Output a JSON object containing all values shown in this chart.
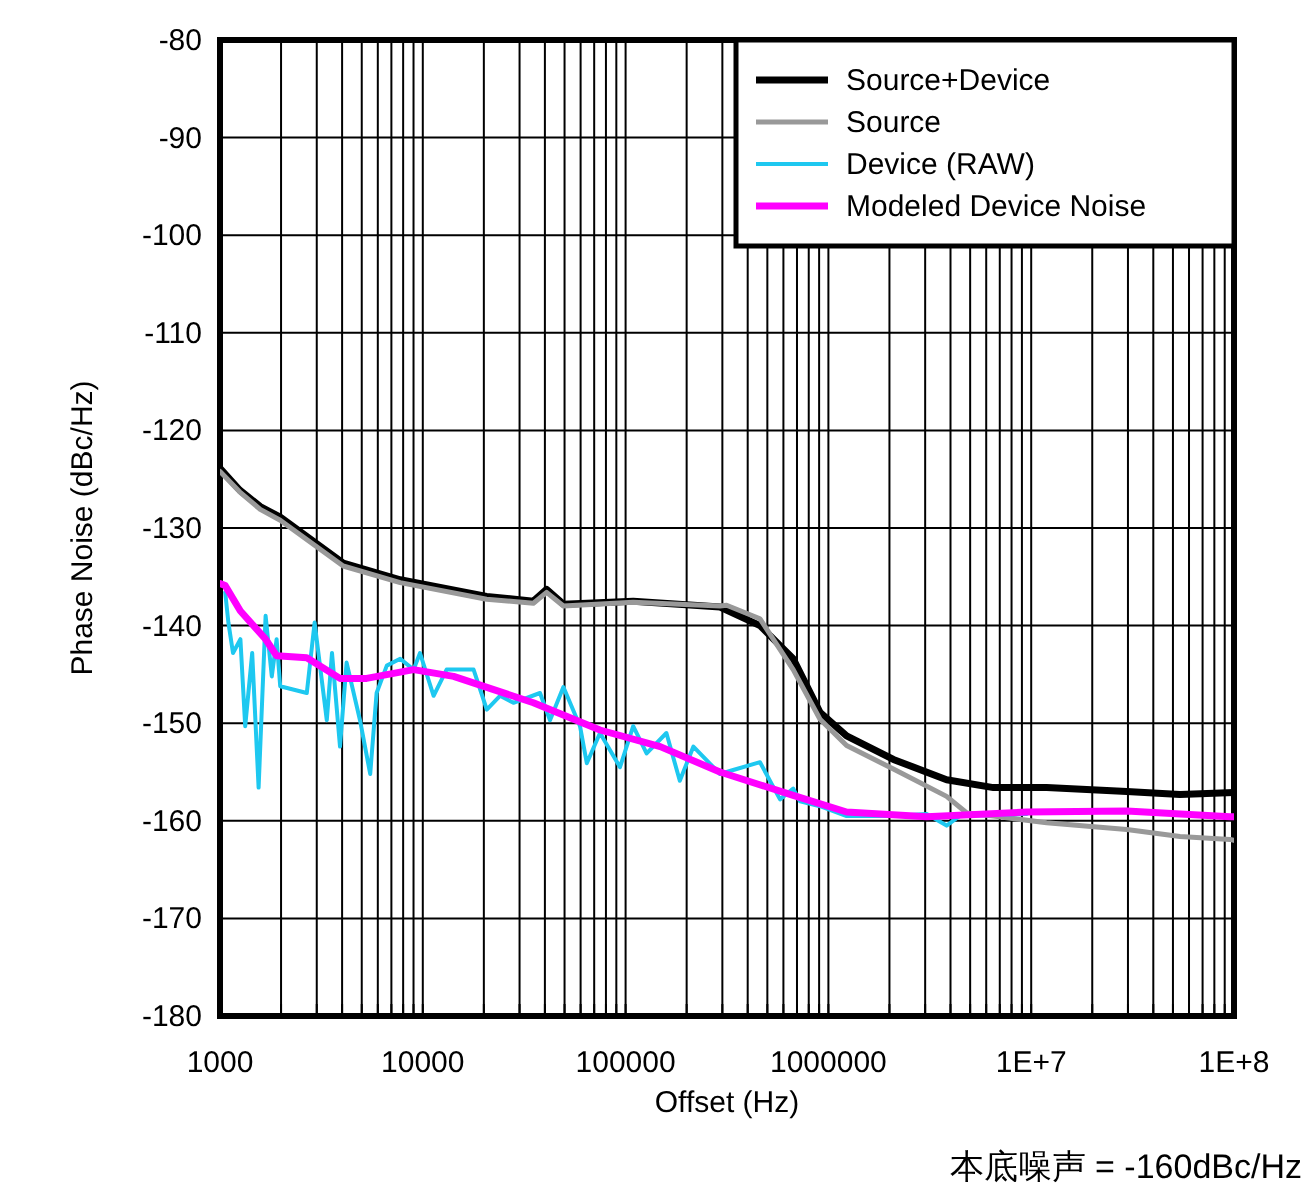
{
  "chart_data": {
    "type": "line",
    "xlabel": "Offset (Hz)",
    "ylabel": "Phase Noise (dBc/Hz)",
    "log": "x",
    "grid": true,
    "legend": "top right",
    "line_style": "solid",
    "marker": "none",
    "xlim": [
      1000,
      100000000
    ],
    "ylim": [
      -180,
      -80
    ],
    "xticks": [
      1000,
      {
        "value": 2000,
        "label": null
      },
      {
        "value": 3000,
        "label": null
      },
      {
        "value": 4000,
        "label": null
      },
      {
        "value": 5000,
        "label": null
      },
      {
        "value": 6000,
        "label": null
      },
      {
        "value": 7000,
        "label": null
      },
      {
        "value": 8000,
        "label": null
      },
      {
        "value": 9000,
        "label": null
      },
      10000,
      {
        "value": 20000,
        "label": null
      },
      {
        "value": 30000,
        "label": null
      },
      {
        "value": 40000,
        "label": null
      },
      {
        "value": 50000,
        "label": null
      },
      {
        "value": 60000,
        "label": null
      },
      {
        "value": 70000,
        "label": null
      },
      {
        "value": 80000,
        "label": null
      },
      {
        "value": 90000,
        "label": null
      },
      100000,
      {
        "value": 200000,
        "label": null
      },
      {
        "value": 300000,
        "label": null
      },
      {
        "value": 400000,
        "label": null
      },
      {
        "value": 500000,
        "label": null
      },
      {
        "value": 600000,
        "label": null
      },
      {
        "value": 700000,
        "label": null
      },
      {
        "value": 800000,
        "label": null
      },
      {
        "value": 900000,
        "label": null
      },
      1000000,
      {
        "value": 2000000,
        "label": null
      },
      {
        "value": 3000000,
        "label": null
      },
      {
        "value": 4000000,
        "label": null
      },
      {
        "value": 5000000,
        "label": null
      },
      {
        "value": 6000000,
        "label": null
      },
      {
        "value": 7000000,
        "label": null
      },
      {
        "value": 8000000,
        "label": null
      },
      {
        "value": 9000000,
        "label": null
      },
      {
        "value": 10000000,
        "label": "1E+7"
      },
      {
        "value": 20000000,
        "label": null
      },
      {
        "value": 30000000,
        "label": null
      },
      {
        "value": 40000000,
        "label": null
      },
      {
        "value": 50000000,
        "label": null
      },
      {
        "value": 60000000,
        "label": null
      },
      {
        "value": 70000000,
        "label": null
      },
      {
        "value": 80000000,
        "label": null
      },
      {
        "value": 90000000,
        "label": null
      },
      {
        "value": 100000000,
        "label": "1E+8"
      }
    ],
    "yticks": [
      -180,
      -170,
      -160,
      -150,
      -140,
      -130,
      -120,
      -110,
      -100,
      -90,
      -80
    ],
    "annotations": [
      "本底噪声 = -160dBc/Hz"
    ],
    "series": [
      {
        "name": "Source+Device",
        "color": "#000000",
        "x": [
          1000,
          1250,
          1580,
          1980,
          4050,
          7730,
          20650,
          35100,
          40800,
          49300,
          109000,
          292000,
          460000,
          671000,
          909000,
          1230000,
          2090000,
          3830000,
          6510000,
          11900000,
          29600000,
          54200000,
          100000000
        ],
        "values": [
          -123.9,
          -126.1,
          -127.8,
          -128.9,
          -133.6,
          -135.3,
          -137.0,
          -137.5,
          -136.3,
          -137.8,
          -137.5,
          -138.1,
          -140.0,
          -143.4,
          -148.9,
          -151.3,
          -153.7,
          -155.8,
          -156.6,
          -156.6,
          -157.0,
          -157.3,
          -157.1
        ]
      },
      {
        "name": "Source",
        "color": "#999999",
        "x": [
          1000,
          1250,
          1580,
          1980,
          4050,
          7730,
          20650,
          35100,
          40800,
          49300,
          109000,
          292000,
          315000,
          460000,
          671000,
          909000,
          1230000,
          2090000,
          3830000,
          4810000,
          6510000,
          11900000,
          29600000,
          54200000,
          95500000,
          100000000
        ],
        "values": [
          -124.2,
          -126.3,
          -128.1,
          -129.2,
          -133.9,
          -135.6,
          -137.3,
          -137.7,
          -136.6,
          -138.0,
          -137.6,
          -138.0,
          -137.9,
          -139.3,
          -144.5,
          -149.6,
          -152.3,
          -154.7,
          -157.5,
          -159.2,
          -159.5,
          -160.2,
          -160.9,
          -161.6,
          -161.9,
          -162.0
        ]
      },
      {
        "name": "Device (RAW)",
        "color": "#1ec8f0",
        "x": [
          1060,
          1100,
          1160,
          1260,
          1330,
          1440,
          1550,
          1680,
          1800,
          1900,
          1980,
          2680,
          2930,
          3360,
          3570,
          3910,
          4210,
          4900,
          5500,
          5920,
          6640,
          7730,
          9000,
          9680,
          11300,
          13100,
          17800,
          20700,
          24000,
          28000,
          37800,
          42400,
          49300,
          59600,
          64300,
          74800,
          93800,
          109000,
          127000,
          159000,
          185000,
          216000,
          292000,
          339600,
          460000,
          577000,
          671000,
          724000,
          909000,
          1230000,
          2090000,
          3050000,
          3830000,
          4450000,
          9490000
        ],
        "values": [
          -136.6,
          -139.7,
          -142.8,
          -141.4,
          -150.3,
          -142.8,
          -156.6,
          -139.0,
          -145.2,
          -141.4,
          -146.2,
          -146.9,
          -139.7,
          -149.7,
          -142.8,
          -152.4,
          -143.8,
          -149.7,
          -155.2,
          -146.9,
          -144.1,
          -143.4,
          -144.5,
          -142.8,
          -147.2,
          -144.5,
          -144.5,
          -148.6,
          -147.2,
          -147.9,
          -146.9,
          -149.7,
          -146.3,
          -150.3,
          -154.1,
          -151.0,
          -154.5,
          -150.3,
          -153.1,
          -151.0,
          -155.9,
          -152.4,
          -155.2,
          -154.8,
          -154.0,
          -157.8,
          -156.7,
          -158.0,
          -158.5,
          -159.5,
          -159.5,
          -159.3,
          -160.5,
          -159.5,
          -159.3
        ]
      },
      {
        "name": "Modeled Device Noise",
        "color": "#ff00ff",
        "x": [
          1000,
          1060,
          1260,
          1680,
          1900,
          2680,
          3910,
          5280,
          9000,
          14200,
          35100,
          74800,
          148000,
          292000,
          671000,
          1230000,
          3050000,
          9490000,
          29600000,
          95500000,
          100000000
        ],
        "values": [
          -135.7,
          -135.9,
          -138.5,
          -141.4,
          -143.1,
          -143.3,
          -145.4,
          -145.4,
          -144.5,
          -145.2,
          -147.9,
          -150.7,
          -152.4,
          -155.0,
          -157.4,
          -159.1,
          -159.6,
          -159.1,
          -159.0,
          -159.6,
          -159.6
        ]
      }
    ]
  }
}
